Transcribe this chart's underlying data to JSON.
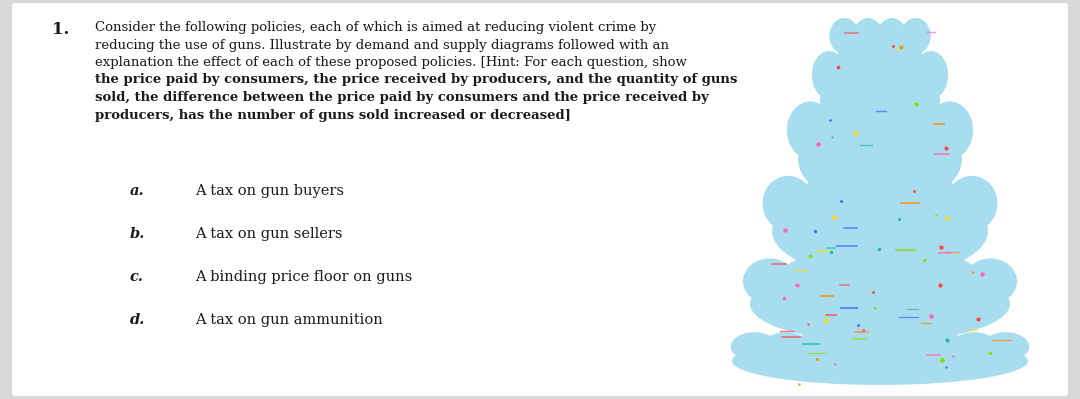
{
  "background_color": "#d8d8d8",
  "content_background": "#ffffff",
  "number_label": "1.",
  "text_color": "#1a1a1a",
  "font_size_main": 9.5,
  "font_size_items": 10.0,
  "tree_color": "#a8ddf0",
  "tree_dot_colors": [
    "#ff4444",
    "#ffdd00",
    "#88dd00",
    "#ff8800",
    "#ff66bb",
    "#4466ff",
    "#22bbaa"
  ],
  "number_fontsize": 12,
  "item_label_fontsize": 10.5,
  "items": [
    {
      "label": "a.",
      "text": "A tax on gun buyers"
    },
    {
      "label": "b.",
      "text": "A tax on gun sellers"
    },
    {
      "label": "c.",
      "text": "A binding price floor on guns"
    },
    {
      "label": "d.",
      "text": "A tax on gun ammunition"
    }
  ]
}
